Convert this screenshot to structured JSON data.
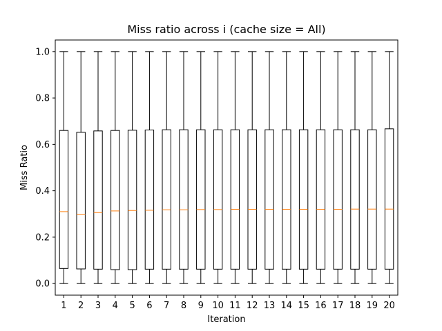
{
  "chart_data": {
    "type": "boxplot",
    "title": "Miss ratio across i (cache size = All)",
    "xlabel": "Iteration",
    "ylabel": "Miss Ratio",
    "categories": [
      "1",
      "2",
      "3",
      "4",
      "5",
      "6",
      "7",
      "8",
      "9",
      "10",
      "11",
      "12",
      "13",
      "14",
      "15",
      "16",
      "17",
      "18",
      "19",
      "20"
    ],
    "ylim": [
      -0.05,
      1.05
    ],
    "yticks": [
      "0.0",
      "0.2",
      "0.4",
      "0.6",
      "0.8",
      "1.0"
    ],
    "grid": false,
    "boxes": [
      {
        "whisker_low": 0.0,
        "q1": 0.065,
        "median": 0.31,
        "q3": 0.66,
        "whisker_high": 1.0
      },
      {
        "whisker_low": 0.0,
        "q1": 0.063,
        "median": 0.297,
        "q3": 0.652,
        "whisker_high": 1.0
      },
      {
        "whisker_low": 0.0,
        "q1": 0.062,
        "median": 0.306,
        "q3": 0.658,
        "whisker_high": 1.0
      },
      {
        "whisker_low": 0.0,
        "q1": 0.06,
        "median": 0.313,
        "q3": 0.66,
        "whisker_high": 1.0
      },
      {
        "whisker_low": 0.0,
        "q1": 0.06,
        "median": 0.315,
        "q3": 0.661,
        "whisker_high": 1.0
      },
      {
        "whisker_low": 0.0,
        "q1": 0.062,
        "median": 0.316,
        "q3": 0.662,
        "whisker_high": 1.0
      },
      {
        "whisker_low": 0.0,
        "q1": 0.062,
        "median": 0.318,
        "q3": 0.663,
        "whisker_high": 1.0
      },
      {
        "whisker_low": 0.0,
        "q1": 0.062,
        "median": 0.318,
        "q3": 0.663,
        "whisker_high": 1.0
      },
      {
        "whisker_low": 0.0,
        "q1": 0.062,
        "median": 0.319,
        "q3": 0.663,
        "whisker_high": 1.0
      },
      {
        "whisker_low": 0.0,
        "q1": 0.062,
        "median": 0.319,
        "q3": 0.663,
        "whisker_high": 1.0
      },
      {
        "whisker_low": 0.0,
        "q1": 0.062,
        "median": 0.32,
        "q3": 0.663,
        "whisker_high": 1.0
      },
      {
        "whisker_low": 0.0,
        "q1": 0.062,
        "median": 0.32,
        "q3": 0.663,
        "whisker_high": 1.0
      },
      {
        "whisker_low": 0.0,
        "q1": 0.062,
        "median": 0.32,
        "q3": 0.663,
        "whisker_high": 1.0
      },
      {
        "whisker_low": 0.0,
        "q1": 0.062,
        "median": 0.32,
        "q3": 0.663,
        "whisker_high": 1.0
      },
      {
        "whisker_low": 0.0,
        "q1": 0.062,
        "median": 0.32,
        "q3": 0.663,
        "whisker_high": 1.0
      },
      {
        "whisker_low": 0.0,
        "q1": 0.062,
        "median": 0.32,
        "q3": 0.663,
        "whisker_high": 1.0
      },
      {
        "whisker_low": 0.0,
        "q1": 0.062,
        "median": 0.32,
        "q3": 0.663,
        "whisker_high": 1.0
      },
      {
        "whisker_low": 0.0,
        "q1": 0.062,
        "median": 0.321,
        "q3": 0.663,
        "whisker_high": 1.0
      },
      {
        "whisker_low": 0.0,
        "q1": 0.062,
        "median": 0.321,
        "q3": 0.663,
        "whisker_high": 1.0
      },
      {
        "whisker_low": 0.0,
        "q1": 0.062,
        "median": 0.321,
        "q3": 0.667,
        "whisker_high": 1.0
      }
    ],
    "colors": {
      "box": "#000000",
      "median": "#ff7f0e",
      "background": "#ffffff"
    }
  }
}
